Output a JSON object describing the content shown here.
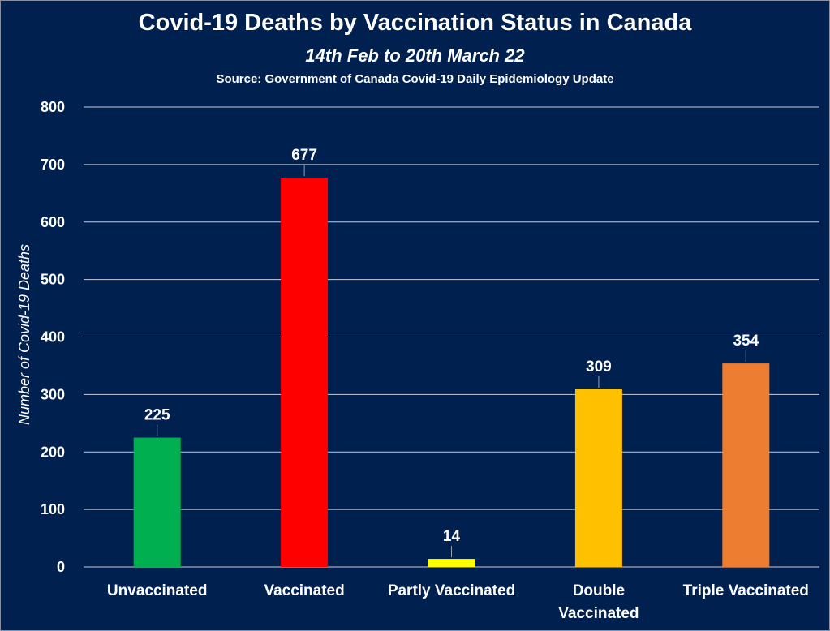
{
  "chart_data": {
    "type": "bar",
    "title": "Covid-19 Deaths by Vaccination Status in Canada",
    "subtitle": "14th Feb to 20th March 22",
    "source": "Source: Government of Canada  Covid-19 Daily Epidemiology Update",
    "ylabel": "Number of Covid-19 Deaths",
    "xlabel": "",
    "ylim": [
      0,
      800
    ],
    "yticks": [
      0,
      100,
      200,
      300,
      400,
      500,
      600,
      700,
      800
    ],
    "grid": true,
    "categories": [
      [
        "Unvaccinated"
      ],
      [
        "Vaccinated"
      ],
      [
        "Partly Vaccinated"
      ],
      [
        "Double",
        "Vaccinated"
      ],
      [
        "Triple Vaccinated"
      ]
    ],
    "values": [
      225,
      677,
      14,
      309,
      354
    ],
    "colors": [
      "#00b050",
      "#ff0000",
      "#ffff00",
      "#ffc000",
      "#ed7d31"
    ],
    "background": "#002050"
  }
}
